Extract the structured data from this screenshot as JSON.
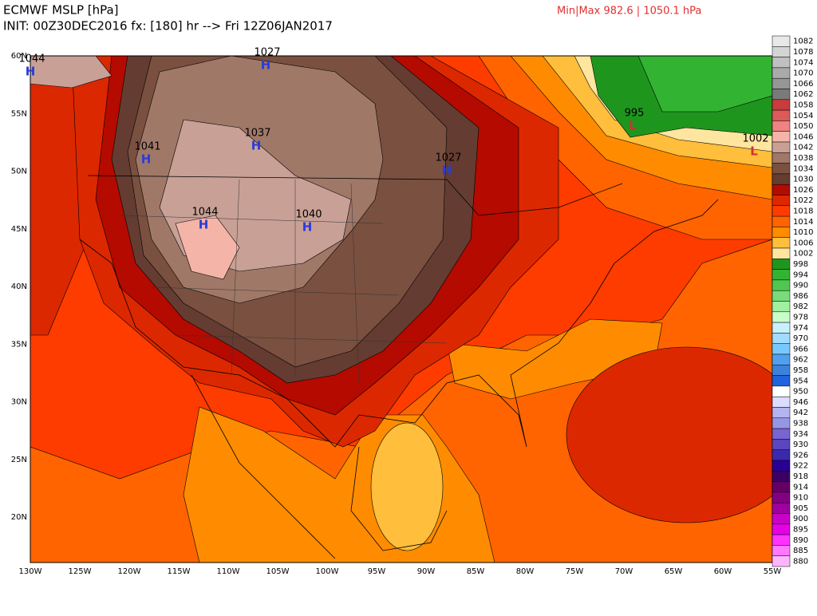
{
  "header": {
    "title": "ECMWF MSLP [hPa]",
    "init": "INIT: 00Z30DEC2016 fx: [180] hr --> Fri 12Z06JAN2017",
    "minmax": "Min|Max 982.6 | 1050.1 hPa"
  },
  "lat_labels": [
    "60N",
    "55N",
    "50N",
    "45N",
    "40N",
    "35N",
    "30N",
    "25N",
    "20N"
  ],
  "lon_labels": [
    "130W",
    "125W",
    "120W",
    "115W",
    "110W",
    "105W",
    "100W",
    "95W",
    "90W",
    "85W",
    "80W",
    "75W",
    "70W",
    "65W",
    "60W",
    "55W"
  ],
  "centers": [
    {
      "letter": "H",
      "value": "1044"
    },
    {
      "letter": "H",
      "value": "1027"
    },
    {
      "letter": "H",
      "value": "1037"
    },
    {
      "letter": "H",
      "value": "1041"
    },
    {
      "letter": "H",
      "value": "1044"
    },
    {
      "letter": "H",
      "value": "1040"
    },
    {
      "letter": "H",
      "value": "1027"
    },
    {
      "letter": "L",
      "value": "995"
    },
    {
      "letter": "L",
      "value": "1002"
    }
  ],
  "colorbar": [
    {
      "label": "1082",
      "color": "#e8e8e8"
    },
    {
      "label": "1078",
      "color": "#d4d4d4"
    },
    {
      "label": "1074",
      "color": "#c0c0c0"
    },
    {
      "label": "1070",
      "color": "#aaaaaa"
    },
    {
      "label": "1066",
      "color": "#969696"
    },
    {
      "label": "1062",
      "color": "#7a7a7a"
    },
    {
      "label": "1058",
      "color": "#c83c3c"
    },
    {
      "label": "1054",
      "color": "#dc5a5a"
    },
    {
      "label": "1050",
      "color": "#f08282"
    },
    {
      "label": "1046",
      "color": "#f5b4a8"
    },
    {
      "label": "1042",
      "color": "#c8a096"
    },
    {
      "label": "1038",
      "color": "#a07868"
    },
    {
      "label": "1034",
      "color": "#7a5040"
    },
    {
      "label": "1030",
      "color": "#643c32"
    },
    {
      "label": "1026",
      "color": "#b40a00"
    },
    {
      "label": "1022",
      "color": "#dc2800"
    },
    {
      "label": "1018",
      "color": "#ff3c00"
    },
    {
      "label": "1014",
      "color": "#ff6400"
    },
    {
      "label": "1010",
      "color": "#ff8c00"
    },
    {
      "label": "1006",
      "color": "#ffbe3c"
    },
    {
      "label": "1002",
      "color": "#ffe6a0"
    },
    {
      "label": "998",
      "color": "#1e961e"
    },
    {
      "label": "994",
      "color": "#32b432"
    },
    {
      "label": "990",
      "color": "#50c850"
    },
    {
      "label": "986",
      "color": "#78dc78"
    },
    {
      "label": "982",
      "color": "#a0f0a0"
    },
    {
      "label": "978",
      "color": "#c8ffc8"
    },
    {
      "label": "974",
      "color": "#c8f0ff"
    },
    {
      "label": "970",
      "color": "#a0dcff"
    },
    {
      "label": "966",
      "color": "#78c8ff"
    },
    {
      "label": "962",
      "color": "#50a0f0"
    },
    {
      "label": "958",
      "color": "#3c82dc"
    },
    {
      "label": "954",
      "color": "#1e64dc"
    },
    {
      "label": "950",
      "color": "#ffffff"
    },
    {
      "label": "946",
      "color": "#dcdcff"
    },
    {
      "label": "942",
      "color": "#b4b4f0"
    },
    {
      "label": "938",
      "color": "#9696e6"
    },
    {
      "label": "934",
      "color": "#7864d2"
    },
    {
      "label": "930",
      "color": "#5a46be"
    },
    {
      "label": "926",
      "color": "#3c28aa"
    },
    {
      "label": "922",
      "color": "#280096"
    },
    {
      "label": "918",
      "color": "#3c0064"
    },
    {
      "label": "914",
      "color": "#640064"
    },
    {
      "label": "910",
      "color": "#820082"
    },
    {
      "label": "905",
      "color": "#a000a0"
    },
    {
      "label": "900",
      "color": "#c800c8"
    },
    {
      "label": "895",
      "color": "#e600e6"
    },
    {
      "label": "890",
      "color": "#ff32ff"
    },
    {
      "label": "885",
      "color": "#ff78ff"
    },
    {
      "label": "880",
      "color": "#ffb4ff"
    }
  ]
}
